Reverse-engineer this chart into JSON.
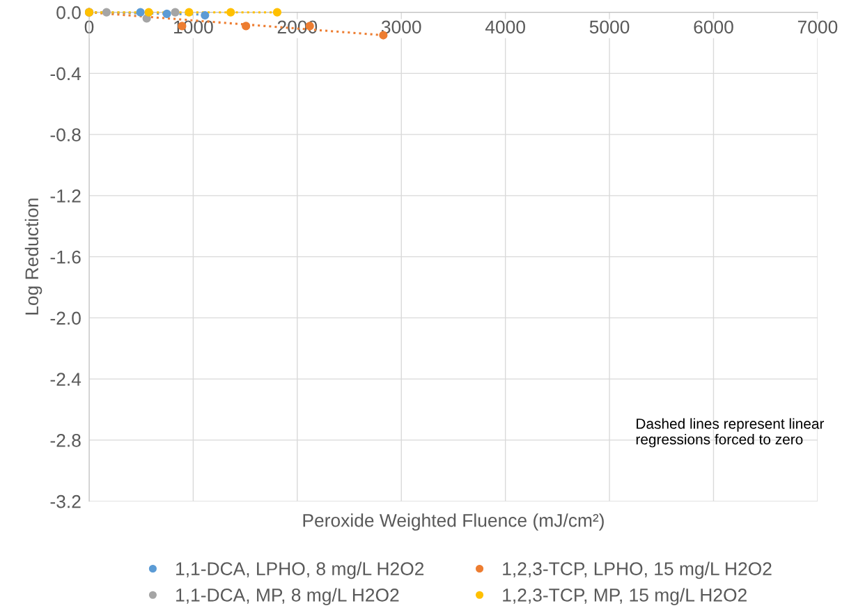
{
  "chart_data": {
    "type": "scatter",
    "xlabel": "Peroxide Weighted Fluence (mJ/cm²)",
    "ylabel": "Log Reduction",
    "xlim": [
      0,
      7000
    ],
    "xticks": [
      0,
      1000,
      2000,
      3000,
      4000,
      5000,
      6000,
      7000
    ],
    "ylim": [
      -3.2,
      0
    ],
    "yticks": [
      {
        "value": -3.2,
        "label": "-3.2"
      },
      {
        "value": -2.8,
        "label": "-2.8"
      },
      {
        "value": -2.4,
        "label": "-2.4"
      },
      {
        "value": -2.0,
        "label": "-2.0"
      },
      {
        "value": -1.6,
        "label": "-1.6"
      },
      {
        "value": -1.2,
        "label": "-1.2"
      },
      {
        "value": -0.8,
        "label": "-0.8"
      },
      {
        "value": -0.4,
        "label": "-0.4"
      },
      {
        "value": 0,
        "label": "0.0"
      }
    ],
    "grid": true,
    "legend": "bottom",
    "marker": "circle",
    "annotations": [
      "Dashed lines represent linear regressions forced to zero"
    ],
    "series": [
      {
        "name": "1,1-DCA, LPHO, 8 mg/L H2O2",
        "color": "#5b9bd5",
        "x": [
          0,
          493,
          747,
          1113
        ],
        "values": [
          0,
          0,
          -0.01,
          -0.02
        ]
      },
      {
        "name": "1,2,3-TCP, LPHO, 15 mg/L H2O2",
        "color": "#ed7d31",
        "x": [
          0,
          893,
          1507,
          2120,
          2827
        ],
        "values": [
          0,
          -0.09,
          -0.09,
          -0.09,
          -0.15
        ]
      },
      {
        "name": "1,1-DCA, MP, 8 mg/L H2O2",
        "color": "#a5a5a5",
        "x": [
          0,
          167,
          553,
          827
        ],
        "values": [
          0,
          0,
          -0.04,
          0
        ]
      },
      {
        "name": "1,2,3-TCP, MP, 15 mg/L H2O2",
        "color": "#ffc000",
        "x": [
          0,
          573,
          960,
          1360,
          1807
        ],
        "values": [
          0,
          0,
          0,
          0,
          0
        ]
      },
      {
        "type": "line",
        "line_style": "dotted",
        "marker": "none",
        "color": "#5b9bd5",
        "x": [
          0,
          1113
        ],
        "values": [
          0,
          -0.015
        ]
      },
      {
        "type": "line",
        "line_style": "dotted",
        "marker": "none",
        "color": "#ed7d31",
        "x": [
          0,
          2827
        ],
        "values": [
          0,
          -0.15
        ]
      },
      {
        "type": "line",
        "line_style": "dotted",
        "marker": "none",
        "color": "#a5a5a5",
        "x": [
          0,
          827
        ],
        "values": [
          0,
          -0.005
        ]
      },
      {
        "type": "line",
        "line_style": "dotted",
        "marker": "none",
        "color": "#ffc000",
        "x": [
          0,
          1807
        ],
        "values": [
          0,
          0
        ]
      }
    ]
  }
}
